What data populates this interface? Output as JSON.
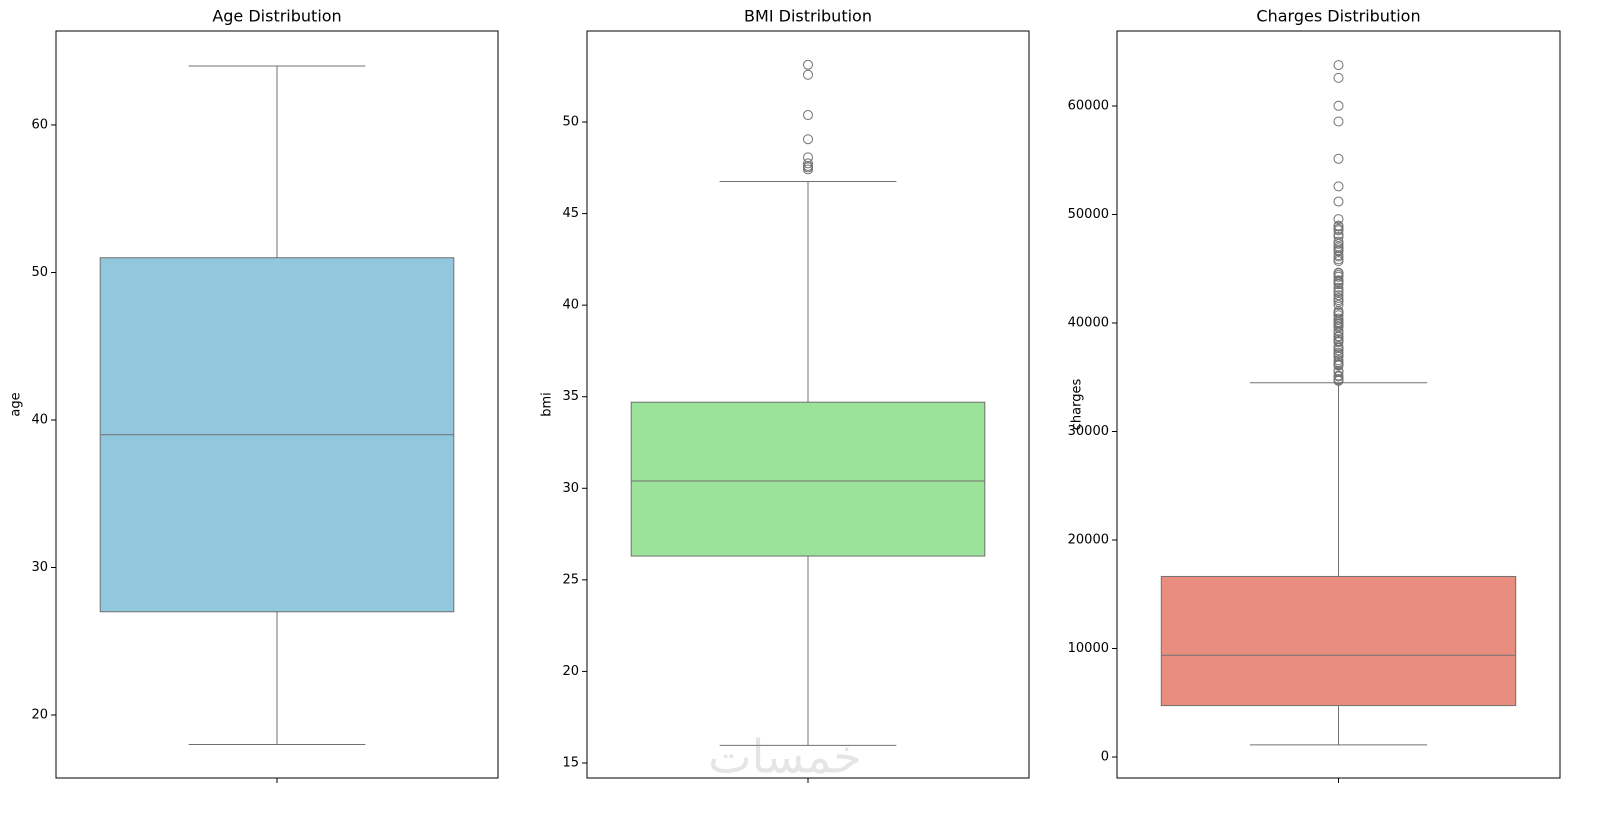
{
  "chart_data": [
    {
      "type": "box",
      "title": "Age Distribution",
      "ylabel": "age",
      "color": "#92c8de",
      "ylim": [
        15.73,
        66.37
      ],
      "yticks": [
        20,
        30,
        40,
        50,
        60
      ],
      "whisker_low": 18,
      "q1": 27,
      "median": 39,
      "q3": 51,
      "whisker_high": 64,
      "outliers": []
    },
    {
      "type": "box",
      "title": "BMI Distribution",
      "ylabel": "bmi",
      "color": "#9be39b",
      "ylim": [
        14.18,
        54.97
      ],
      "yticks": [
        15,
        20,
        25,
        30,
        35,
        40,
        45,
        50
      ],
      "whisker_low": 15.96,
      "q1": 26.3,
      "median": 30.4,
      "q3": 34.7,
      "whisker_high": 46.75,
      "outliers": [
        53.13,
        52.58,
        50.38,
        49.06,
        48.07,
        47.74,
        47.6,
        47.52,
        47.41
      ]
    },
    {
      "type": "box",
      "title": "Charges Distribution",
      "ylabel": "charges",
      "color": "#e98d80",
      "ylim": [
        -1935,
        66913
      ],
      "yticks": [
        0,
        10000,
        20000,
        30000,
        40000,
        50000,
        60000
      ],
      "whisker_low": 1122,
      "q1": 4740,
      "median": 9382,
      "q3": 16640,
      "whisker_high": 34490,
      "outliers": [
        63770,
        62593,
        60021,
        58571,
        55135,
        52591,
        51195,
        49577,
        48970,
        48885,
        48675,
        48549,
        48173,
        47928,
        47496,
        47291,
        47055,
        46889,
        46718,
        46599,
        46255,
        46130,
        45863,
        45702,
        44641,
        44585,
        44423,
        44260,
        43943,
        43896,
        43753,
        43578,
        43254,
        42983,
        42856,
        42560,
        42303,
        42112,
        41949,
        41661,
        41097,
        40974,
        40932,
        40720,
        40419,
        40273,
        40103,
        39983,
        39871,
        39725,
        39597,
        39241,
        39047,
        38792,
        38711,
        38511,
        38344,
        38245,
        37829,
        37701,
        37484,
        37270,
        37134,
        36950,
        36898,
        36580,
        36397,
        36219,
        36149,
        36086,
        35595,
        35491,
        35160,
        35070,
        34838,
        34779,
        34672
      ]
    }
  ],
  "watermark": "خمسات"
}
